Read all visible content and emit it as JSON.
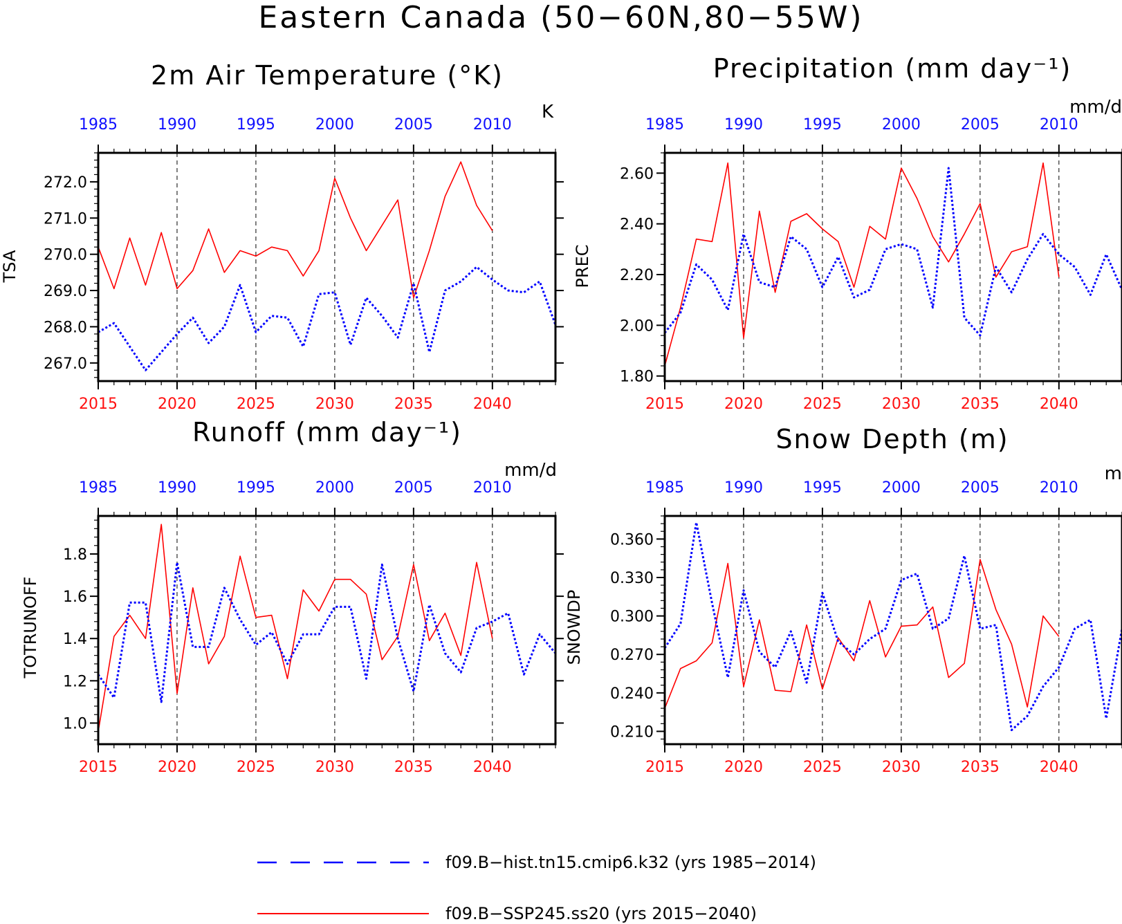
{
  "title": "Eastern Canada (50−60N,80−55W)",
  "colors": {
    "hist": "#0000ff",
    "ssp": "#ff0000",
    "top_axis_text": "#1010ff",
    "bottom_axis_text": "#ff1010"
  },
  "legend": [
    {
      "key": "hist",
      "label": "f09.B−hist.tn15.cmip6.k32 (yrs 1985−2014)",
      "style": "dashed"
    },
    {
      "key": "ssp",
      "label": "f09.B−SSP245.ss20 (yrs 2015−2040)",
      "style": "solid"
    }
  ],
  "chart_data": [
    {
      "type": "line",
      "title": "2m Air Temperature (°K)",
      "units": "K",
      "ylabel": "TSA",
      "xlim": [
        2015,
        2044
      ],
      "ylim": [
        266.5,
        272.8
      ],
      "yticks": [
        "267.0",
        "268.0",
        "269.0",
        "270.0",
        "271.0",
        "272.0"
      ],
      "xticks_bottom": [
        "2015",
        "2020",
        "2025",
        "2030",
        "2035",
        "2040"
      ],
      "xticks_top": [
        "1985",
        "1990",
        "1995",
        "2000",
        "2005",
        "2010"
      ],
      "vlines": [
        2020,
        2025,
        2030,
        2035,
        2040
      ],
      "series": [
        {
          "key": "ssp",
          "x_start": 2015,
          "values": [
            270.2,
            269.05,
            270.45,
            269.15,
            270.6,
            269.05,
            269.55,
            270.7,
            269.5,
            270.1,
            269.95,
            270.2,
            270.1,
            269.4,
            270.1,
            272.1,
            271.0,
            270.1,
            270.8,
            271.5,
            268.8,
            270.1,
            271.6,
            272.55,
            271.35,
            270.65
          ]
        },
        {
          "key": "hist",
          "x_start": 2015,
          "values": [
            267.85,
            268.1,
            267.45,
            266.8,
            267.3,
            267.8,
            268.25,
            267.55,
            268.0,
            269.15,
            267.85,
            268.3,
            268.25,
            267.45,
            268.9,
            268.95,
            267.5,
            268.8,
            268.3,
            267.7,
            269.2,
            267.3,
            269.0,
            269.25,
            269.65,
            269.3,
            269.0,
            268.95,
            269.25,
            268.05
          ]
        }
      ]
    },
    {
      "type": "line",
      "title": "Precipitation (mm day⁻¹)",
      "units": "mm/d",
      "ylabel": "PREC",
      "xlim": [
        2015,
        2044
      ],
      "ylim": [
        1.78,
        2.68
      ],
      "yticks": [
        "1.80",
        "2.00",
        "2.20",
        "2.40",
        "2.60"
      ],
      "xticks_bottom": [
        "2015",
        "2020",
        "2025",
        "2030",
        "2035",
        "2040"
      ],
      "xticks_top": [
        "1985",
        "1990",
        "1995",
        "2000",
        "2005",
        "2010"
      ],
      "vlines": [
        2020,
        2025,
        2030,
        2035,
        2040
      ],
      "series": [
        {
          "key": "ssp",
          "x_start": 2015,
          "values": [
            1.84,
            2.07,
            2.34,
            2.33,
            2.64,
            1.95,
            2.45,
            2.13,
            2.41,
            2.44,
            2.38,
            2.33,
            2.15,
            2.39,
            2.34,
            2.62,
            2.5,
            2.35,
            2.25,
            2.36,
            2.48,
            2.19,
            2.29,
            2.31,
            2.64,
            2.19
          ]
        },
        {
          "key": "hist",
          "x_start": 2015,
          "values": [
            1.97,
            2.05,
            2.24,
            2.18,
            2.06,
            2.36,
            2.17,
            2.15,
            2.35,
            2.3,
            2.15,
            2.27,
            2.11,
            2.14,
            2.3,
            2.32,
            2.3,
            2.07,
            2.62,
            2.03,
            1.96,
            2.23,
            2.13,
            2.26,
            2.36,
            2.28,
            2.23,
            2.12,
            2.28,
            2.14
          ]
        }
      ]
    },
    {
      "type": "line",
      "title": "Runoff (mm day⁻¹)",
      "units": "mm/d",
      "ylabel": "TOTRUNOFF",
      "xlim": [
        2015,
        2044
      ],
      "ylim": [
        0.9,
        1.98
      ],
      "yticks": [
        "1.0",
        "1.2",
        "1.4",
        "1.6",
        "1.8"
      ],
      "xticks_bottom": [
        "2015",
        "2020",
        "2025",
        "2030",
        "2035",
        "2040"
      ],
      "xticks_top": [
        "1985",
        "1990",
        "1995",
        "2000",
        "2005",
        "2010"
      ],
      "vlines": [
        2020,
        2025,
        2030,
        2035,
        2040
      ],
      "series": [
        {
          "key": "ssp",
          "x_start": 2015,
          "values": [
            0.96,
            1.41,
            1.51,
            1.4,
            1.94,
            1.14,
            1.64,
            1.28,
            1.41,
            1.79,
            1.5,
            1.51,
            1.21,
            1.63,
            1.53,
            1.68,
            1.68,
            1.61,
            1.3,
            1.41,
            1.75,
            1.39,
            1.52,
            1.32,
            1.76,
            1.4
          ]
        },
        {
          "key": "hist",
          "x_start": 2015,
          "values": [
            1.23,
            1.12,
            1.57,
            1.57,
            1.1,
            1.76,
            1.36,
            1.36,
            1.64,
            1.49,
            1.37,
            1.43,
            1.28,
            1.42,
            1.42,
            1.55,
            1.55,
            1.21,
            1.75,
            1.4,
            1.15,
            1.56,
            1.33,
            1.24,
            1.45,
            1.48,
            1.52,
            1.23,
            1.42,
            1.33
          ]
        }
      ]
    },
    {
      "type": "line",
      "title": "Snow Depth (m)",
      "units": "m",
      "ylabel": "SNOWDP",
      "xlim": [
        2015,
        2044
      ],
      "ylim": [
        0.2,
        0.378
      ],
      "yticks": [
        "0.210",
        "0.240",
        "0.270",
        "0.300",
        "0.330",
        "0.360"
      ],
      "xticks_bottom": [
        "2015",
        "2020",
        "2025",
        "2030",
        "2035",
        "2040"
      ],
      "xticks_top": [
        "1985",
        "1990",
        "1995",
        "2000",
        "2005",
        "2010"
      ],
      "vlines": [
        2020,
        2025,
        2030,
        2035,
        2040
      ],
      "series": [
        {
          "key": "ssp",
          "x_start": 2015,
          "values": [
            0.228,
            0.259,
            0.265,
            0.279,
            0.341,
            0.245,
            0.297,
            0.242,
            0.241,
            0.293,
            0.243,
            0.283,
            0.265,
            0.312,
            0.268,
            0.292,
            0.293,
            0.307,
            0.252,
            0.263,
            0.344,
            0.305,
            0.278,
            0.229,
            0.3,
            0.284
          ]
        },
        {
          "key": "hist",
          "x_start": 2015,
          "values": [
            0.275,
            0.294,
            0.373,
            0.31,
            0.252,
            0.32,
            0.272,
            0.26,
            0.288,
            0.248,
            0.318,
            0.28,
            0.27,
            0.282,
            0.29,
            0.328,
            0.333,
            0.29,
            0.298,
            0.347,
            0.29,
            0.293,
            0.211,
            0.222,
            0.245,
            0.26,
            0.29,
            0.297,
            0.22,
            0.29
          ]
        }
      ]
    }
  ]
}
